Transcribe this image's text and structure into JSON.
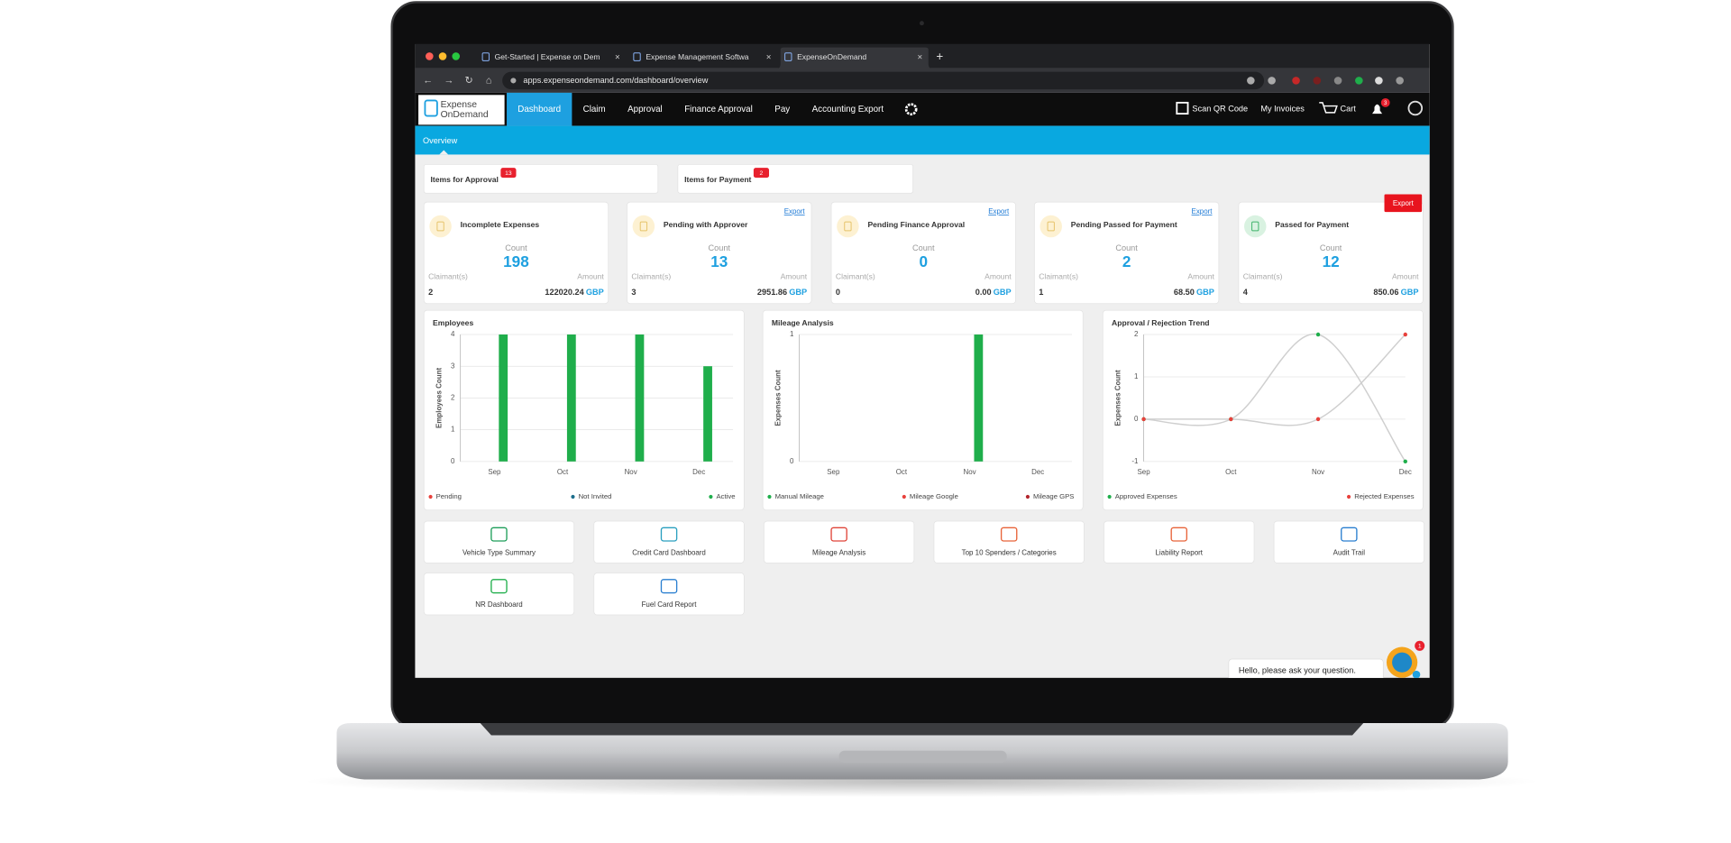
{
  "browser": {
    "tabs": [
      "Get-Started | Expense on Dem",
      "Expense Management Softwa",
      "ExpenseOnDemand"
    ],
    "url": "apps.expenseondemand.com/dashboard/overview"
  },
  "nav": {
    "logo": [
      "Expense",
      "OnDemand"
    ],
    "items": [
      "Dashboard",
      "Claim",
      "Approval",
      "Finance Approval",
      "Pay",
      "Accounting Export"
    ],
    "active": 0,
    "right": [
      "Scan QR Code",
      "My Invoices",
      "Cart"
    ],
    "bell_count": "3"
  },
  "subnav": "Overview",
  "summary": [
    {
      "label": "Items for Approval",
      "count": "13"
    },
    {
      "label": "Items for Payment",
      "count": "2"
    }
  ],
  "cards": [
    {
      "title": "Incomplete Expenses",
      "count_label": "Count",
      "count": 198,
      "claimant_label": "Claimant(s)",
      "amount_label": "Amount",
      "claimants": 2,
      "amount": "122020.24",
      "currency": "GBP"
    },
    {
      "title": "Pending with Approver",
      "count_label": "Count",
      "count": 13,
      "claimant_label": "Claimant(s)",
      "amount_label": "Amount",
      "claimants": 3,
      "amount": "2951.86",
      "currency": "GBP",
      "export": "Export"
    },
    {
      "title": "Pending Finance Approval",
      "count_label": "Count",
      "count": 0,
      "claimant_label": "Claimant(s)",
      "amount_label": "Amount",
      "claimants": 0,
      "amount": "0.00",
      "currency": "GBP",
      "export": "Export"
    },
    {
      "title": "Pending Passed for Payment",
      "count_label": "Count",
      "count": 2,
      "claimant_label": "Claimant(s)",
      "amount_label": "Amount",
      "claimants": 1,
      "amount": "68.50",
      "currency": "GBP",
      "export": "Export"
    },
    {
      "title": "Passed for Payment",
      "count_label": "Count",
      "count": 12,
      "claimant_label": "Claimant(s)",
      "amount_label": "Amount",
      "claimants": 4,
      "amount": "850.06",
      "currency": "GBP",
      "export": "Export",
      "export_button": true
    }
  ],
  "chart_data": [
    {
      "type": "bar",
      "title": "Employees",
      "y_label": "Employees Count",
      "categories": [
        "Sep",
        "Oct",
        "Nov",
        "Dec"
      ],
      "series": [
        {
          "name": "Pending",
          "color": "#e8413c",
          "values": [
            0,
            0,
            0,
            0
          ]
        },
        {
          "name": "Not Invited",
          "color": "#1c6e8c",
          "values": [
            0,
            0,
            0,
            0
          ]
        },
        {
          "name": "Active",
          "color": "#1fae4b",
          "values": [
            4,
            4,
            4,
            3
          ]
        }
      ],
      "ylim": [
        0,
        4
      ],
      "yticks": [
        0,
        1,
        2,
        3,
        4
      ],
      "grid": true
    },
    {
      "type": "bar",
      "title": "Mileage Analysis",
      "y_label": "Expenses Count",
      "categories": [
        "Sep",
        "Oct",
        "Nov",
        "Dec"
      ],
      "series": [
        {
          "name": "Manual Mileage",
          "color": "#1fae4b",
          "values": [
            0,
            0,
            1,
            0
          ]
        },
        {
          "name": "Mileage Google",
          "color": "#e8413c",
          "values": [
            0,
            0,
            0,
            0
          ]
        },
        {
          "name": "Mileage GPS",
          "color": "#b3262d",
          "values": [
            0,
            0,
            0,
            0
          ]
        }
      ],
      "ylim": [
        0,
        1
      ],
      "yticks": [
        0,
        1
      ],
      "grid": true
    },
    {
      "type": "line",
      "title": "Approval / Rejection Trend",
      "y_label": "Expenses Count",
      "categories": [
        "Sep",
        "Oct",
        "Nov",
        "Dec"
      ],
      "series": [
        {
          "name": "Approved Expenses",
          "color": "#1fae4b",
          "values": [
            0,
            0,
            2,
            -1
          ]
        },
        {
          "name": "Rejected Expenses",
          "color": "#e8413c",
          "values": [
            0,
            0,
            0,
            2
          ]
        }
      ],
      "ylim": [
        -1,
        2
      ],
      "yticks": [
        -1,
        0,
        1,
        2
      ],
      "grid": true
    }
  ],
  "tiles": [
    "Vehicle Type Summary",
    "Credit Card Dashboard",
    "Mileage Analysis",
    "Top 10 Spenders / Categories",
    "Liability Report",
    "Audit Trail",
    "NR Dashboard",
    "Fuel Card Report"
  ],
  "chat": {
    "message": "Hello, please ask your question.",
    "badge": "1"
  }
}
